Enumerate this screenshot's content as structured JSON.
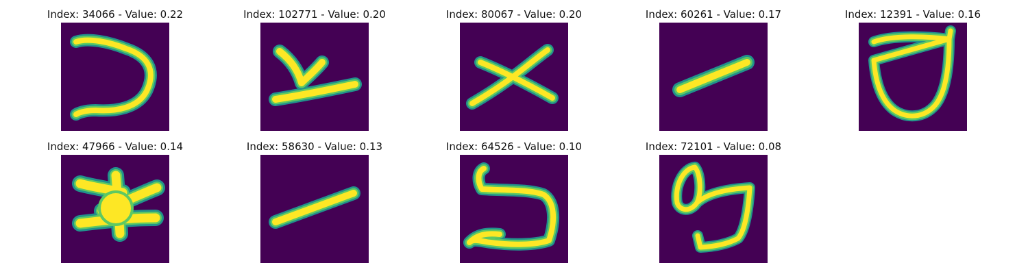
{
  "colors": {
    "background": "#440154",
    "stroke_outer": "#21918c",
    "stroke_mid": "#5ec962",
    "stroke_core": "#fde725",
    "title_text": "#111111"
  },
  "panels": [
    {
      "title": "Index: 34066 - Value: 0.22",
      "glyph": "hook-shape"
    },
    {
      "title": "Index: 102771 - Value: 0.20",
      "glyph": "y-shape"
    },
    {
      "title": "Index: 80067 - Value: 0.20",
      "glyph": "x-shape"
    },
    {
      "title": "Index: 60261 - Value: 0.17",
      "glyph": "slash-shape"
    },
    {
      "title": "Index: 12391 - Value: 0.16",
      "glyph": "shield-shape"
    },
    {
      "title": "Index: 47966 - Value: 0.14",
      "glyph": "star-shape"
    },
    {
      "title": "Index: 58630 - Value: 0.13",
      "glyph": "slash-shape"
    },
    {
      "title": "Index: 64526 - Value: 0.10",
      "glyph": "five-shape"
    },
    {
      "title": "Index: 72101 - Value: 0.08",
      "glyph": "loop-shape"
    }
  ]
}
